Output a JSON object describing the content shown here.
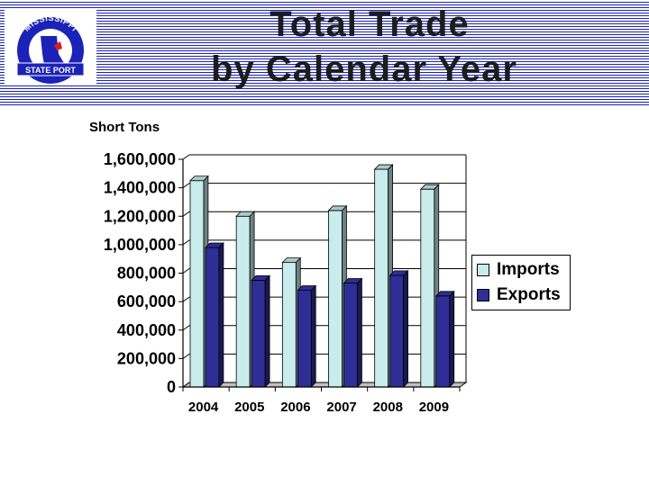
{
  "header": {
    "title_line1": "Total Trade",
    "title_line2": "by  Calendar Year",
    "logo_text_top": "MISSISSIPPI",
    "logo_text_bottom": "STATE PORT"
  },
  "colors": {
    "imports": "#c9ecec",
    "exports": "#2e2e96",
    "stripe": "#1b22b8"
  },
  "chart_data": {
    "type": "bar",
    "ylabel": "Short Tons",
    "xlabel": "",
    "categories": [
      "2004",
      "2005",
      "2006",
      "2007",
      "2008",
      "2009"
    ],
    "series": [
      {
        "name": "Imports",
        "values": [
          1450000,
          1200000,
          875000,
          1240000,
          1530000,
          1390000
        ]
      },
      {
        "name": "Exports",
        "values": [
          980000,
          750000,
          680000,
          730000,
          785000,
          640000
        ]
      }
    ],
    "ylim": [
      0,
      1600000
    ],
    "yticks": [
      {
        "value": 0,
        "label": "0"
      },
      {
        "value": 200000,
        "label": "200,000"
      },
      {
        "value": 400000,
        "label": "400,000"
      },
      {
        "value": 600000,
        "label": "600,000"
      },
      {
        "value": 800000,
        "label": "800,000"
      },
      {
        "value": 1000000,
        "label": "1,000,000"
      },
      {
        "value": 1200000,
        "label": "1,200,000"
      },
      {
        "value": 1400000,
        "label": "1,400,000"
      },
      {
        "value": 1600000,
        "label": "1,600,000"
      }
    ],
    "grid": true,
    "legend": {
      "placement": "right",
      "entries": [
        "Imports",
        "Exports"
      ]
    }
  }
}
